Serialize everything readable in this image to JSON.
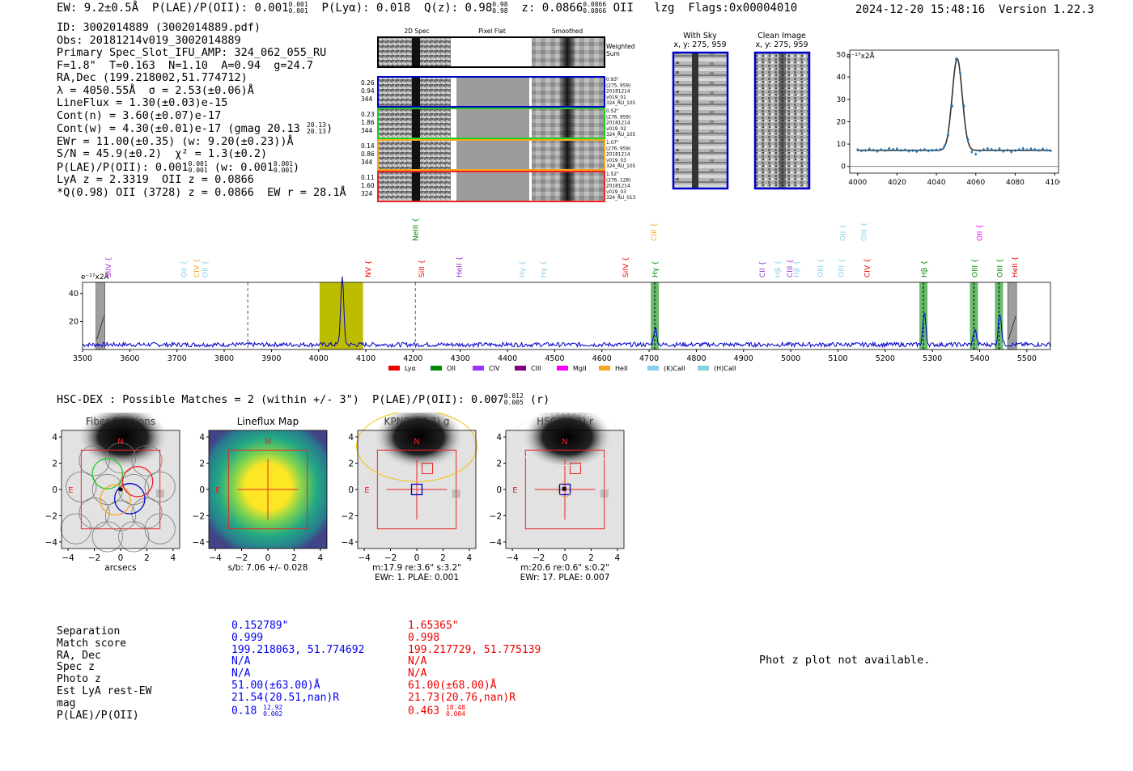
{
  "header": {
    "ew": "EW: 9.2±0.5Å",
    "plae_label": "P(LAE)/P(OII): 0.001",
    "plae_hi": "0.001",
    "plae_lo": "0.001",
    "plya": "P(Lyα): 0.018",
    "qz_label": "Q(z): 0.98",
    "qz_hi": "0.98",
    "qz_lo": "0.98",
    "z_label": "z: 0.0866",
    "z_hi": "0.0866",
    "z_lo": "0.0866",
    "z_line": "OII",
    "lzg": "lzg",
    "flags": "Flags:0x00004010",
    "date": "2024-12-20 15:48:16",
    "version": "Version 1.22.3"
  },
  "info": {
    "id": "ID: 3002014889 (3002014889.pdf)",
    "obs": "Obs: 20181214v019_3002014889",
    "primary": "Primary Spec_Slot_IFU_AMP: 324_062_055_RU",
    "fline": "F=1.8\"  T=0.163  N=1.10  A=0.94  g=24.7",
    "radec": "RA,Dec (199.218002,51.774712)",
    "lambda": "λ = 4050.55Å  σ = 2.53(±0.06)Å",
    "lineflux": "LineFlux = 1.30(±0.03)e-15",
    "contn": "Cont(n) = 3.60(±0.07)e-17",
    "contw": "Cont(w) = 4.30(±0.01)e-17 (gmag 20.13",
    "contw_hi": "20.13",
    "contw_lo": "20.13",
    "ewr": "EWr = 11.00(±0.35) (w: 9.20(±0.23))Å",
    "sn": "S/N = 45.9(±0.2)  χ² = 1.3(±0.2)",
    "plae": "P(LAE)/P(OII): 0.001",
    "plae_hi": "0.001",
    "plae_lo": "0.001",
    "plae_w": "(w: 0.001",
    "plae_w_hi": "0.001",
    "plae_w_lo": "0.001",
    "lya": "LyA z = 2.3319  OII z = 0.0866",
    "q": "*Q(0.98) OII (3728) z = 0.0866  EW r = 28.1Å"
  },
  "cutouts": {
    "col_labels": [
      "2D Spec",
      "Pixel Flat",
      "Smoothed"
    ],
    "weighted_sum": "Weighted Sum",
    "rows": [
      {
        "left": [
          "0.26",
          "0.94",
          "344"
        ],
        "right": [
          "0.93\"",
          "(275, 959)",
          "20181214",
          "v019_01",
          "324_RU_105"
        ],
        "color": "#0000cc"
      },
      {
        "left": [
          "0.23",
          "1.86",
          "344"
        ],
        "right": [
          "0.52\"",
          "(276, 959)",
          "20181214",
          "v019_02",
          "324_RU_105"
        ],
        "color": "#22cc22"
      },
      {
        "left": [
          "0.14",
          "0.86",
          "344"
        ],
        "right": [
          "1.07\"",
          "(276, 959)",
          "20181214",
          "v019_03",
          "324_RU_105"
        ],
        "color": "#f5a623"
      },
      {
        "left": [
          "0.11",
          "1.60",
          "324"
        ],
        "right": [
          "1.52\"",
          "(276, 128)",
          "20181214",
          "v019_03",
          "324_RU_013"
        ],
        "color": "#ee2222"
      }
    ],
    "with_sky_title": "With Sky",
    "with_sky_xy": "x, y: 275, 959",
    "clean_title": "Clean Image",
    "clean_xy": "x, y: 275, 959"
  },
  "fit_chart": {
    "type": "scatter",
    "ylabel": "e⁻¹⁷x2Å",
    "xlim": [
      3996,
      4102
    ],
    "ylim": [
      -3,
      52
    ],
    "xticks": [
      4000,
      4020,
      4040,
      4060,
      4080,
      4100
    ],
    "yticks": [
      0,
      10,
      20,
      30,
      40,
      50
    ],
    "points_x": [
      4000,
      4002,
      4004,
      4006,
      4008,
      4010,
      4012,
      4014,
      4016,
      4018,
      4020,
      4022,
      4024,
      4026,
      4028,
      4030,
      4032,
      4034,
      4036,
      4038,
      4040,
      4042,
      4044,
      4046,
      4048,
      4050,
      4052,
      4054,
      4056,
      4058,
      4060,
      4062,
      4064,
      4066,
      4068,
      4070,
      4072,
      4074,
      4076,
      4078,
      4080,
      4082,
      4084,
      4086,
      4088,
      4090,
      4092,
      4094,
      4096,
      4098
    ],
    "points_y": [
      7.5,
      7,
      7.2,
      7.8,
      7.3,
      6.8,
      7.5,
      7.1,
      8,
      7.6,
      7.9,
      7.2,
      7.4,
      6.9,
      7.1,
      6.7,
      7.3,
      7.5,
      7,
      7.2,
      7.4,
      7.6,
      9,
      14,
      27,
      48,
      42,
      27,
      12,
      6.5,
      5.5,
      7,
      7.5,
      8,
      7.6,
      7.2,
      7.9,
      6.8,
      7.3,
      6.5,
      7.1,
      7.5,
      8,
      7.4,
      7.9,
      7.6,
      7.2,
      7.8,
      7.3,
      7
    ]
  },
  "spectrum": {
    "type": "line",
    "ylabel": "e⁻¹⁷x2Å",
    "xlim": [
      3500,
      5550
    ],
    "ylim": [
      0,
      48
    ],
    "xticks": [
      3500,
      3600,
      3700,
      3800,
      3900,
      4000,
      4100,
      4200,
      4300,
      4400,
      4500,
      4600,
      4700,
      4800,
      4900,
      5000,
      5100,
      5200,
      5300,
      5400,
      5500
    ],
    "yticks": [
      20,
      40
    ],
    "line_markers": [
      {
        "label": "SiIV",
        "x": 3555,
        "row": 1,
        "color": "#9933cc"
      },
      {
        "label": "OII",
        "x": 3715,
        "row": 1,
        "color": "#87ceeb"
      },
      {
        "label": "CIV",
        "x": 3742,
        "row": 1,
        "color": "#f5a623"
      },
      {
        "label": "OII",
        "x": 3760,
        "row": 1,
        "color": "#87ceeb"
      },
      {
        "label": "NV",
        "x": 4105,
        "row": 1,
        "color": "#ee0000"
      },
      {
        "label": "NeIII",
        "x": 4205,
        "row": 0,
        "color": "#008800"
      },
      {
        "label": "SiII",
        "x": 4218,
        "row": 1,
        "color": "#ee0000"
      },
      {
        "label": "HeII",
        "x": 4298,
        "row": 1,
        "color": "#9933cc"
      },
      {
        "label": "Hγ",
        "x": 4432,
        "row": 1,
        "color": "#87ceeb"
      },
      {
        "label": "Hγ",
        "x": 4476,
        "row": 1,
        "color": "#87ceeb"
      },
      {
        "label": "SiIV",
        "x": 4650,
        "row": 1,
        "color": "#ee0000"
      },
      {
        "label": "CIII",
        "x": 4710,
        "row": 0,
        "color": "#f5a623"
      },
      {
        "label": "Hγ",
        "x": 4713,
        "row": 1,
        "color": "#008800"
      },
      {
        "label": "CII",
        "x": 4940,
        "row": 1,
        "color": "#9933cc"
      },
      {
        "label": "Hβ",
        "x": 4972,
        "row": 1,
        "color": "#87ceeb"
      },
      {
        "label": "CIII",
        "x": 4998,
        "row": 1,
        "color": "#9933cc"
      },
      {
        "label": "Hβ",
        "x": 5012,
        "row": 1,
        "color": "#87ceeb"
      },
      {
        "label": "OIII",
        "x": 5063,
        "row": 1,
        "color": "#87ceeb"
      },
      {
        "label": "OIII",
        "x": 5107,
        "row": 1,
        "color": "#87ceeb"
      },
      {
        "label": "OII",
        "x": 5110,
        "row": 0,
        "color": "#87ceeb"
      },
      {
        "label": "OIII",
        "x": 5155,
        "row": 0,
        "color": "#87ceeb"
      },
      {
        "label": "CIV",
        "x": 5162,
        "row": 1,
        "color": "#ee0000"
      },
      {
        "label": "Hβ",
        "x": 5283,
        "row": 1,
        "color": "#008800"
      },
      {
        "label": "OII",
        "x": 5400,
        "row": 0,
        "color": "#ee00ee"
      },
      {
        "label": "OIII",
        "x": 5390,
        "row": 1,
        "color": "#008800"
      },
      {
        "label": "OIII",
        "x": 5443,
        "row": 1,
        "color": "#008800"
      },
      {
        "label": "HeII",
        "x": 5475,
        "row": 1,
        "color": "#ee0000"
      }
    ],
    "highlight_band": [
      4002,
      4094
    ],
    "green_bands": [
      4712,
      5281,
      5388,
      5441
    ],
    "gray_bands": [
      3537,
      5468
    ],
    "dashed_lines": [
      3850,
      4205
    ],
    "peaks": [
      {
        "x": 4050,
        "h": 48
      },
      {
        "x": 4713,
        "h": 12
      },
      {
        "x": 5283,
        "h": 22
      },
      {
        "x": 5390,
        "h": 11
      },
      {
        "x": 5443,
        "h": 23
      }
    ],
    "legend": [
      "Lyα",
      "OII",
      "CIV",
      "CIII",
      "MgII",
      "HeII",
      "(K)CaII",
      "(H)CaII"
    ],
    "legend_colors": [
      "#ee0000",
      "#008800",
      "#9933ff",
      "#800080",
      "#ff00ff",
      "#f5a623",
      "#87ceeb",
      "#87ceeb"
    ]
  },
  "hsc": {
    "header": "HSC-DEX : Possible Matches = 2 (within +/- 3\")  P(LAE)/P(OII): 0.007",
    "header_hi": "0.012",
    "header_lo": "0.005",
    "header_band": "(r)",
    "panels": [
      {
        "title": "Fiber Positions",
        "xlabel": "arcsecs",
        "sub1": "",
        "sub2": ""
      },
      {
        "title": "Lineflux Map",
        "xlabel": "s/b: 7.06 +/- 0.028",
        "sub1": "",
        "sub2": ""
      },
      {
        "title": "KPNO(24.7) g",
        "xlabel": "m:17.9  re:3.6\"  s:3.2\"",
        "sub1": "EWr: 1. PLAE: 0.001",
        "sub2": ""
      },
      {
        "title": "HSC(26.2) r",
        "xlabel": "m:20.6  re:0.6\"  s:0.2\"",
        "sub1": "EWr: 17. PLAE: 0.007",
        "sub2": ""
      }
    ],
    "ticks": [
      "-4",
      "-2",
      "0",
      "2",
      "4"
    ],
    "compass_n": "N",
    "compass_e": "E"
  },
  "match_table": {
    "labels": [
      "Separation",
      "Match score",
      "RA, Dec",
      "Spec z",
      "Photo z",
      "Est LyA rest-EW",
      "mag",
      "P(LAE)/P(OII)"
    ],
    "col1": [
      "0.152789\"",
      "0.999",
      "199.218063, 51.774692",
      "N/A",
      "N/A",
      "51.00(±63.00)Å",
      "21.54(20.51,nan)R",
      "0.18"
    ],
    "col1_plae_hi": "12.92",
    "col1_plae_lo": "0.002",
    "col2": [
      "1.65365\"",
      "0.998",
      "199.217729, 51.775139",
      "N/A",
      "N/A",
      "61.00(±68.00)Å",
      "21.73(20.76,nan)R",
      "0.463"
    ],
    "col2_plae_hi": "18.48",
    "col2_plae_lo": "0.004",
    "col1_color": "#0000ee",
    "col2_color": "#ee0000"
  },
  "phot": "Phot z plot not available."
}
